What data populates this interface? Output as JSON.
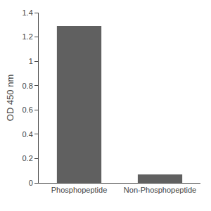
{
  "chart_data": {
    "type": "bar",
    "ylabel": "OD 450 nm",
    "categories": [
      "Phosphopeptide",
      "Non-Phosphopeptide"
    ],
    "values": [
      1.29,
      0.07
    ],
    "color": "#606060",
    "ylim": [
      0,
      1.4
    ],
    "yticks": [
      0,
      0.2,
      0.4,
      0.6,
      0.8,
      1.0,
      1.2,
      1.4
    ],
    "grid": false
  }
}
